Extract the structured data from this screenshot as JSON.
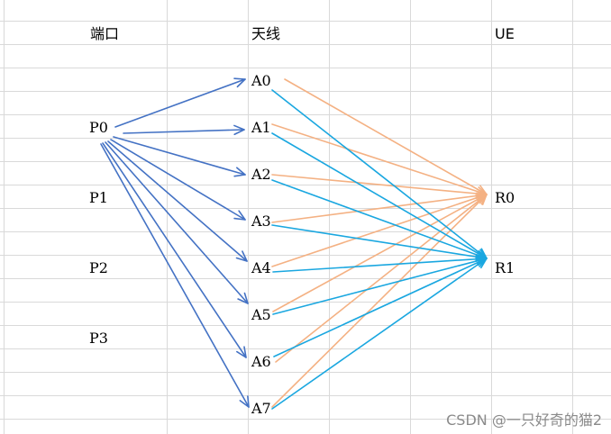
{
  "headers": {
    "port": "端口",
    "antenna": "天线",
    "ue": "UE"
  },
  "ports": [
    "P0",
    "P1",
    "P2",
    "P3"
  ],
  "antennas": [
    "A0",
    "A1",
    "A2",
    "A3",
    "A4",
    "A5",
    "A6",
    "A7"
  ],
  "ue_receivers": [
    "R0",
    "R1"
  ],
  "colors": {
    "port_to_antenna": "#4472c4",
    "antenna_to_R0": "#f4b183",
    "antenna_to_R1": "#1aa7e0",
    "gridline": "#d9d9d9"
  },
  "watermark": "CSDN @一只好奇的猫2"
}
